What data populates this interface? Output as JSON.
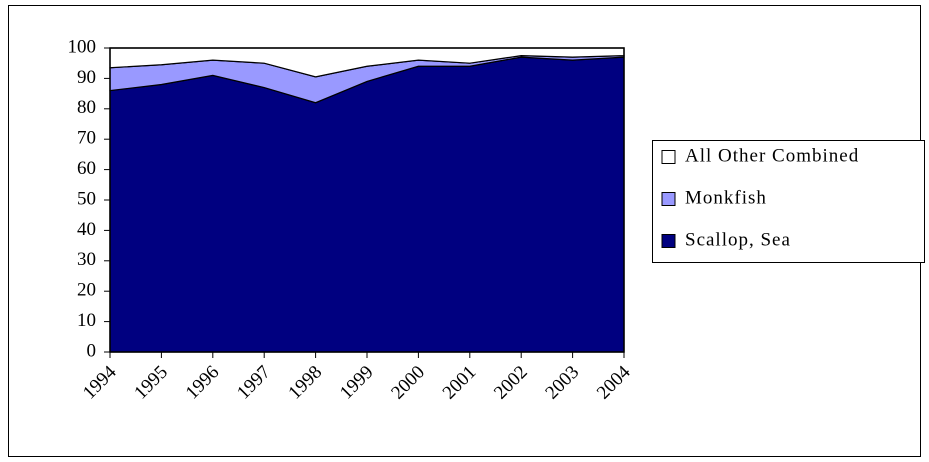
{
  "chart_data": {
    "type": "stacked-area",
    "categories": [
      "1994",
      "1995",
      "1996",
      "1997",
      "1998",
      "1999",
      "2000",
      "2001",
      "2002",
      "2003",
      "2004"
    ],
    "series": [
      {
        "name": "Scallop, Sea",
        "color": "#000080",
        "values": [
          86,
          88,
          91,
          87,
          82,
          89,
          94,
          94,
          97,
          96,
          97
        ]
      },
      {
        "name": "Monkfish",
        "color": "#9999ff",
        "values": [
          7.5,
          6.5,
          5,
          8,
          8.5,
          5,
          2,
          1,
          0.5,
          1,
          0.5
        ]
      },
      {
        "name": "All Other Combined",
        "color": "#ffffff",
        "values": [
          6.5,
          5.5,
          4,
          5,
          9.5,
          6,
          4,
          5,
          2.5,
          3,
          2.5
        ]
      }
    ],
    "ylim": [
      0,
      100
    ],
    "yticks": [
      0,
      10,
      20,
      30,
      40,
      50,
      60,
      70,
      80,
      90,
      100
    ]
  }
}
